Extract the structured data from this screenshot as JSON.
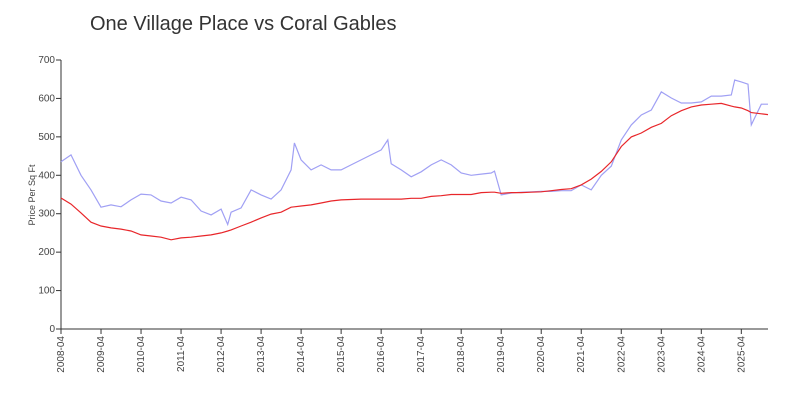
{
  "chart_data": {
    "type": "line",
    "title": "One Village Place vs Coral Gables",
    "y_label": "Price Per Sq Ft",
    "x": [
      "2008-04",
      "2008-07",
      "2008-10",
      "2009-01",
      "2009-04",
      "2009-07",
      "2009-10",
      "2010-01",
      "2010-04",
      "2010-07",
      "2010-10",
      "2011-01",
      "2011-04",
      "2011-07",
      "2011-10",
      "2012-01",
      "2012-04",
      "2012-06",
      "2012-07",
      "2012-10",
      "2013-01",
      "2013-04",
      "2013-07",
      "2013-10",
      "2014-01",
      "2014-02",
      "2014-04",
      "2014-07",
      "2014-10",
      "2015-01",
      "2015-04",
      "2015-07",
      "2015-10",
      "2016-01",
      "2016-04",
      "2016-06",
      "2016-07",
      "2016-10",
      "2017-01",
      "2017-04",
      "2017-07",
      "2017-10",
      "2018-01",
      "2018-04",
      "2018-07",
      "2018-10",
      "2019-01",
      "2019-02",
      "2019-04",
      "2019-07",
      "2019-10",
      "2020-01",
      "2020-04",
      "2020-07",
      "2020-10",
      "2021-01",
      "2021-04",
      "2021-07",
      "2021-10",
      "2022-01",
      "2022-04",
      "2022-07",
      "2022-10",
      "2023-01",
      "2023-04",
      "2023-07",
      "2023-10",
      "2024-01",
      "2024-04",
      "2024-07",
      "2024-10",
      "2025-01",
      "2025-02",
      "2025-04",
      "2025-06",
      "2025-07",
      "2025-10",
      "2025-12"
    ],
    "series": [
      {
        "color": "#a0a0f4",
        "values": [
          435,
          453,
          400,
          362,
          317,
          323,
          318,
          336,
          351,
          349,
          333,
          328,
          343,
          336,
          307,
          297,
          312,
          272,
          304,
          315,
          362,
          349,
          338,
          362,
          414,
          484,
          440,
          414,
          427,
          414,
          414,
          427,
          440,
          453,
          466,
          492,
          430,
          414,
          396,
          409,
          427,
          440,
          427,
          406,
          400,
          403,
          406,
          411,
          349,
          354,
          356,
          357,
          358,
          358,
          360,
          360,
          375,
          362,
          400,
          424,
          492,
          531,
          557,
          570,
          617,
          601,
          588,
          588,
          591,
          606,
          606,
          609,
          648,
          643,
          637,
          531,
          585,
          585
        ]
      },
      {
        "color": "#e8262a",
        "values": [
          341,
          325,
          302,
          278,
          268,
          263,
          260,
          255,
          245,
          242,
          239,
          232,
          237,
          239,
          242,
          245,
          250,
          255,
          258,
          268,
          278,
          289,
          299,
          304,
          317,
          318,
          320,
          323,
          328,
          333,
          336,
          337,
          338,
          338,
          338,
          338,
          338,
          338,
          340,
          340,
          345,
          347,
          350,
          350,
          350,
          355,
          356,
          356,
          353,
          355,
          355,
          356,
          357,
          360,
          363,
          365,
          375,
          390,
          410,
          435,
          475,
          500,
          510,
          525,
          535,
          555,
          568,
          578,
          583,
          585,
          587,
          580,
          578,
          575,
          568,
          563,
          560,
          558
        ]
      }
    ],
    "xlim": [
      "2008-04",
      "2025-12"
    ],
    "xticks": [
      "2008-04",
      "2009-04",
      "2010-04",
      "2011-04",
      "2012-04",
      "2013-04",
      "2014-04",
      "2015-04",
      "2016-04",
      "2017-04",
      "2018-04",
      "2019-04",
      "2020-04",
      "2021-04",
      "2022-04",
      "2023-04",
      "2024-04",
      "2025-04"
    ],
    "ylim": [
      0,
      700
    ],
    "yticks": [
      0,
      100,
      200,
      300,
      400,
      500,
      600,
      700
    ],
    "grid": false
  }
}
